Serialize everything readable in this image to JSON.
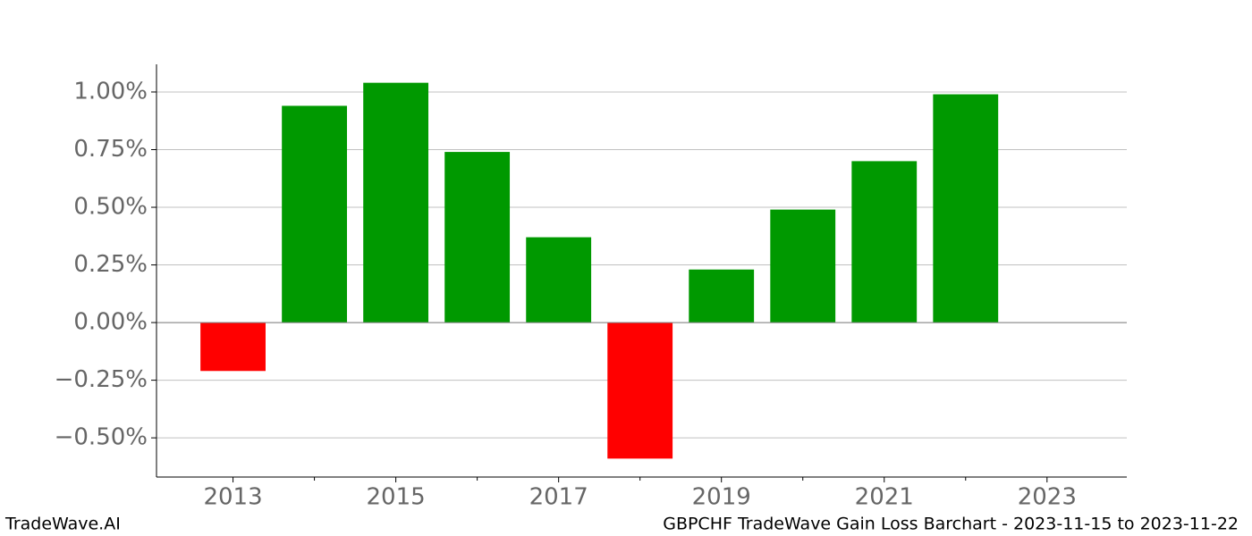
{
  "chart_data": {
    "type": "bar",
    "title": "GBPCHF TradeWave Gain Loss Barchart - 2023-11-15 to 2023-11-22",
    "brand": "TradeWave.AI",
    "x": [
      2013,
      2014,
      2015,
      2016,
      2017,
      2018,
      2019,
      2020,
      2021,
      2022
    ],
    "values": [
      -0.21,
      0.94,
      1.04,
      0.74,
      0.37,
      -0.59,
      0.23,
      0.49,
      0.7,
      0.99
    ],
    "positive_color": "#009900",
    "negative_color": "#ff0000",
    "xlim": [
      2012.06,
      2023.98
    ],
    "xticks": [
      2013,
      2015,
      2017,
      2019,
      2021,
      2023
    ],
    "xminorticks": [
      2014,
      2016,
      2018,
      2020,
      2022
    ],
    "ylim": [
      -0.67,
      1.12
    ],
    "yticks": [
      {
        "value": -0.5,
        "label": "−0.50%"
      },
      {
        "value": -0.25,
        "label": "−0.25%"
      },
      {
        "value": 0,
        "label": "0.00%"
      },
      {
        "value": 0.25,
        "label": "0.25%"
      },
      {
        "value": 0.5,
        "label": "0.50%"
      },
      {
        "value": 0.75,
        "label": "0.75%"
      },
      {
        "value": 1.0,
        "label": "1.00%"
      }
    ],
    "grid": true
  }
}
